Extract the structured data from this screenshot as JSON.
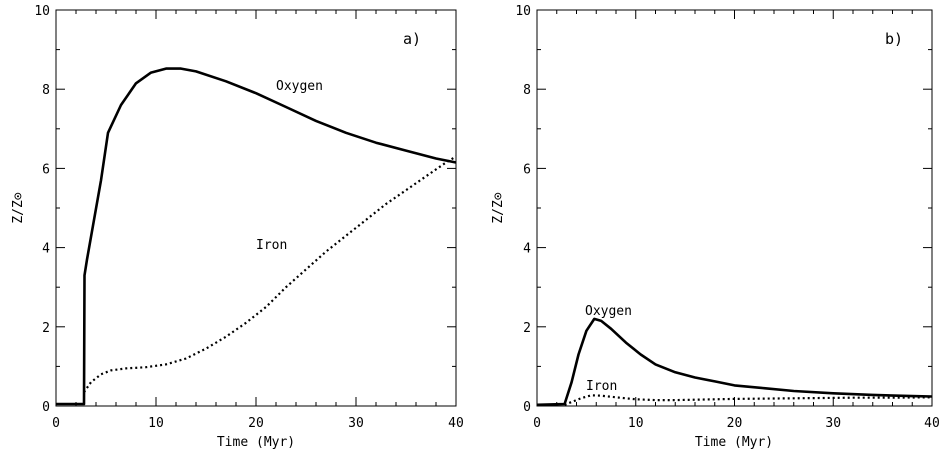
{
  "chart_data": [
    {
      "type": "line",
      "panel_label": "a)",
      "xlabel": "Time (Myr)",
      "ylabel": "Z/Z⊙",
      "xlim": [
        0,
        40
      ],
      "ylim": [
        0,
        10
      ],
      "x_ticks": [
        "0",
        "10",
        "20",
        "30",
        "40"
      ],
      "y_ticks": [
        "0",
        "2",
        "4",
        "6",
        "8",
        "10"
      ],
      "grid": false,
      "series": [
        {
          "name": "Oxygen",
          "style": "solid",
          "x": [
            0,
            2.8,
            2.85,
            3.1,
            4.5,
            5.2,
            6.5,
            8,
            9.5,
            11,
            12.5,
            14,
            17,
            20,
            23,
            26,
            29,
            32,
            35,
            38,
            40
          ],
          "y": [
            0.05,
            0.05,
            3.3,
            3.7,
            5.7,
            6.9,
            7.6,
            8.15,
            8.42,
            8.52,
            8.52,
            8.45,
            8.2,
            7.9,
            7.55,
            7.2,
            6.9,
            6.65,
            6.45,
            6.25,
            6.15
          ]
        },
        {
          "name": "Iron",
          "style": "dotted",
          "x": [
            2.8,
            3.5,
            4.5,
            5.5,
            7,
            9,
            11,
            13,
            15,
            17,
            19,
            21,
            23,
            25,
            27,
            29,
            31,
            33,
            35,
            37,
            39,
            40
          ],
          "y": [
            0.35,
            0.6,
            0.8,
            0.9,
            0.95,
            0.98,
            1.05,
            1.2,
            1.45,
            1.75,
            2.1,
            2.5,
            3.0,
            3.45,
            3.9,
            4.3,
            4.7,
            5.1,
            5.45,
            5.8,
            6.15,
            6.3
          ]
        }
      ]
    },
    {
      "type": "line",
      "panel_label": "b)",
      "xlabel": "Time (Myr)",
      "ylabel": "Z/Z⊙",
      "xlim": [
        0,
        40
      ],
      "ylim": [
        0,
        10
      ],
      "x_ticks": [
        "0",
        "10",
        "20",
        "30",
        "40"
      ],
      "y_ticks": [
        "0",
        "2",
        "4",
        "6",
        "8",
        "10"
      ],
      "grid": false,
      "series": [
        {
          "name": "Oxygen",
          "style": "solid",
          "x": [
            0,
            2.8,
            3.5,
            4.2,
            5,
            5.8,
            6.5,
            7.5,
            9,
            10.5,
            12,
            14,
            16,
            18,
            20,
            23,
            26,
            30,
            34,
            38,
            40
          ],
          "y": [
            0.03,
            0.05,
            0.6,
            1.3,
            1.9,
            2.2,
            2.15,
            1.95,
            1.6,
            1.3,
            1.05,
            0.85,
            0.72,
            0.62,
            0.52,
            0.45,
            0.38,
            0.32,
            0.28,
            0.25,
            0.24
          ]
        },
        {
          "name": "Iron",
          "style": "dotted",
          "x": [
            2.8,
            3.5,
            4.5,
            5.5,
            6.5,
            8,
            10,
            12,
            14,
            16,
            18,
            20,
            24,
            28,
            32,
            36,
            40
          ],
          "y": [
            0.03,
            0.1,
            0.2,
            0.27,
            0.26,
            0.22,
            0.17,
            0.15,
            0.15,
            0.16,
            0.17,
            0.18,
            0.19,
            0.2,
            0.21,
            0.21,
            0.22
          ]
        }
      ]
    }
  ]
}
